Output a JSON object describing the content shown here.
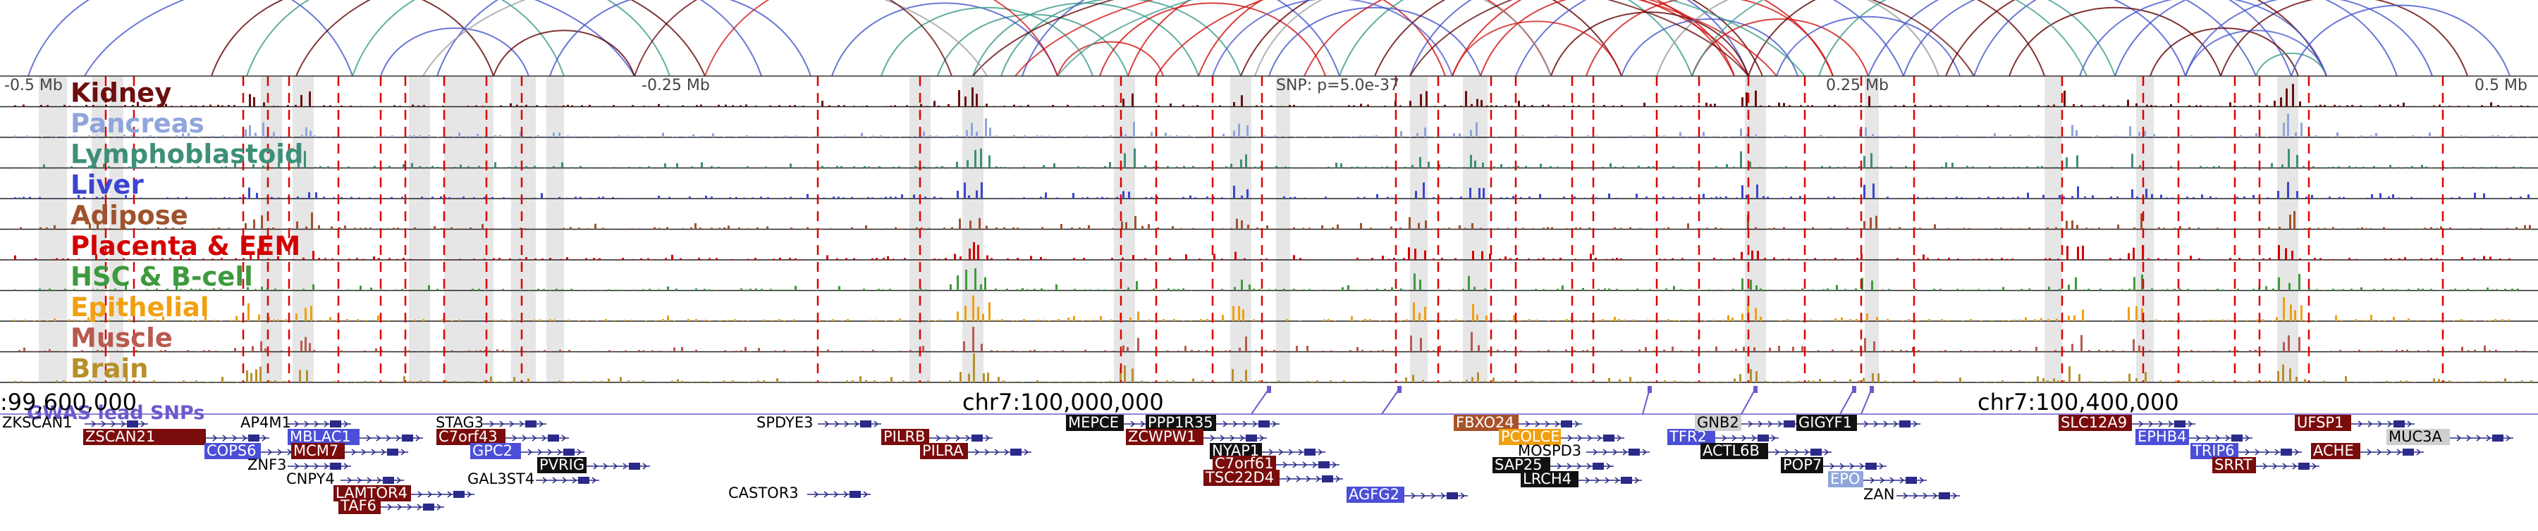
{
  "colors": {
    "gwas": "#6a5acd",
    "red_dash": "#e00000",
    "loop_dark": "#600000",
    "loop_red": "#d01010",
    "loop_teal": "#3a9a8a",
    "loop_blue": "#4455cc",
    "loop_gray": "#999999"
  },
  "axis": {
    "left_label": "-0.5 Mb",
    "mid_left_label": "-0.25 Mb",
    "snp_label": "SNP: p=5.0e-37",
    "mid_right_label": "0.25 Mb",
    "right_label": "0.5 Mb"
  },
  "tracks": [
    {
      "label": "Kidney",
      "color": "#6b0f0f"
    },
    {
      "label": "Pancreas",
      "color": "#8fa6dc"
    },
    {
      "label": "Lymphoblastoid",
      "color": "#3d8f78"
    },
    {
      "label": "Liver",
      "color": "#3b45d0"
    },
    {
      "label": "Adipose",
      "color": "#a0522d"
    },
    {
      "label": "Placenta & EEM",
      "color": "#d40000"
    },
    {
      "label": "HSC & B-cell",
      "color": "#3d9a3d"
    },
    {
      "label": "Epithelial",
      "color": "#f0a010"
    },
    {
      "label": "Muscle",
      "color": "#b85a50"
    },
    {
      "label": "Brain",
      "color": "#b8902a"
    }
  ],
  "gwas_label": "GWAS lead SNPs",
  "coords": [
    {
      "label": ":99,600,000"
    },
    {
      "label": "chr7:100,000,000"
    },
    {
      "label": "chr7:100,400,000"
    }
  ],
  "genes": [
    {
      "name": "ZKSCAN1",
      "style": "plain"
    },
    {
      "name": "ZSCAN21",
      "style": "darkred"
    },
    {
      "name": "AP4M1",
      "style": "plain"
    },
    {
      "name": "MBLAC1",
      "style": "blue"
    },
    {
      "name": "COPS6",
      "style": "blue"
    },
    {
      "name": "MCM7",
      "style": "darkred"
    },
    {
      "name": "ZNF3",
      "style": "plain"
    },
    {
      "name": "CNPY4",
      "style": "plain"
    },
    {
      "name": "LAMTOR4",
      "style": "darkred"
    },
    {
      "name": "TAF6",
      "style": "darkred"
    },
    {
      "name": "STAG3",
      "style": "plain"
    },
    {
      "name": "C7orf43",
      "style": "darkred"
    },
    {
      "name": "GPC2",
      "style": "blue"
    },
    {
      "name": "PVRIG",
      "style": "black"
    },
    {
      "name": "GAL3ST4",
      "style": "plain"
    },
    {
      "name": "CASTOR3",
      "style": "plain"
    },
    {
      "name": "SPDYE3",
      "style": "plain"
    },
    {
      "name": "PILRB",
      "style": "darkred"
    },
    {
      "name": "PILRA",
      "style": "darkred"
    },
    {
      "name": "MEPCE",
      "style": "black"
    },
    {
      "name": "PPP1R35",
      "style": "black"
    },
    {
      "name": "ZCWPW1",
      "style": "darkred"
    },
    {
      "name": "NYAP1",
      "style": "black"
    },
    {
      "name": "C7orf61",
      "style": "darkred"
    },
    {
      "name": "TSC22D4",
      "style": "darkred"
    },
    {
      "name": "AGFG2",
      "style": "blue"
    },
    {
      "name": "FBXO24",
      "style": "brown"
    },
    {
      "name": "PCOLCE",
      "style": "orange"
    },
    {
      "name": "MOSPD3",
      "style": "plain"
    },
    {
      "name": "SAP25",
      "style": "black"
    },
    {
      "name": "LRCH4",
      "style": "black"
    },
    {
      "name": "TFR2",
      "style": "blue"
    },
    {
      "name": "GNB2",
      "style": "gray"
    },
    {
      "name": "ACTL6B",
      "style": "black"
    },
    {
      "name": "GIGYF1",
      "style": "black"
    },
    {
      "name": "POP7",
      "style": "black"
    },
    {
      "name": "EPO",
      "style": "lightblue"
    },
    {
      "name": "ZAN",
      "style": "plain"
    },
    {
      "name": "SLC12A9",
      "style": "darkred"
    },
    {
      "name": "EPHB4",
      "style": "blue"
    },
    {
      "name": "TRIP6",
      "style": "blue"
    },
    {
      "name": "SRRT",
      "style": "darkred"
    },
    {
      "name": "UFSP1",
      "style": "darkred"
    },
    {
      "name": "ACHE",
      "style": "darkred"
    },
    {
      "name": "MUC3A",
      "style": "gray"
    }
  ]
}
